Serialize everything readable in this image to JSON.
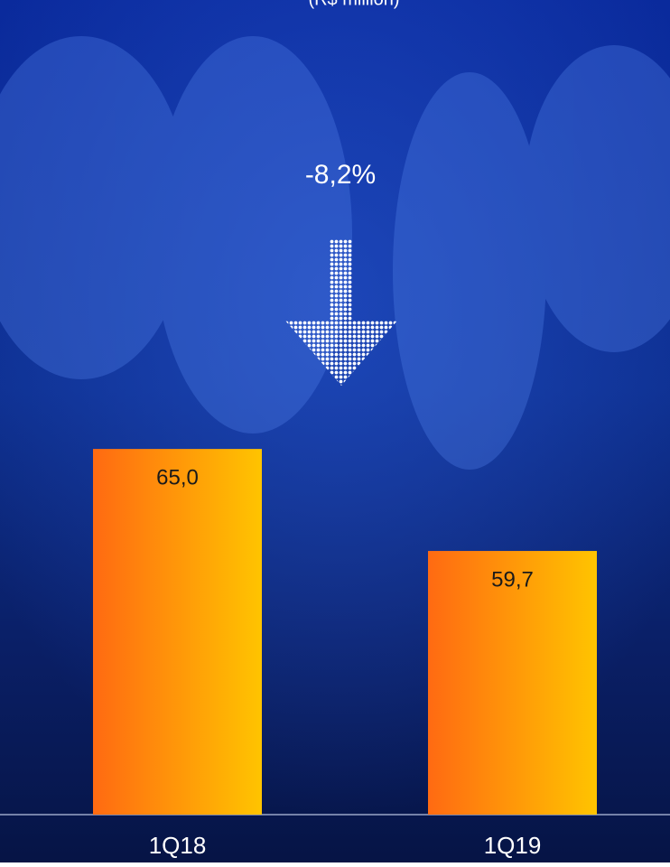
{
  "chart_data": {
    "type": "bar",
    "subtitle": "(R$ million)",
    "annotation": "-8,2%",
    "categories": [
      "1Q18",
      "1Q19"
    ],
    "values": [
      65.0,
      59.7
    ],
    "value_labels": [
      "65,0",
      "59,7"
    ],
    "ylim": [
      46,
      88
    ]
  }
}
